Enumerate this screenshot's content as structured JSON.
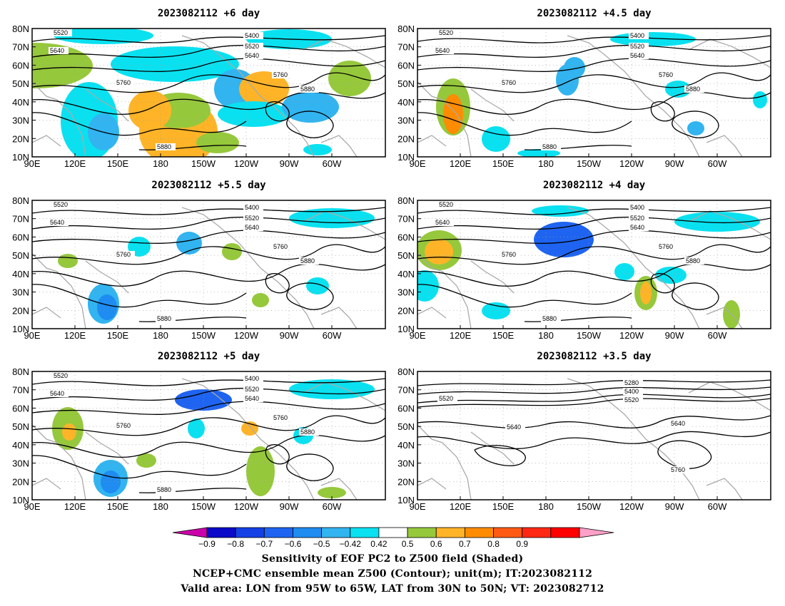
{
  "panels": [
    {
      "id": "p1",
      "title": "2023082112  +6 day",
      "contour_labels": [
        "5520",
        "5640",
        "5400",
        "5520",
        "5640",
        "5760",
        "5760",
        "5880",
        "5880"
      ],
      "coverage": "high"
    },
    {
      "id": "p2",
      "title": "2023082112  +4.5 day",
      "contour_labels": [
        "5520",
        "5640",
        "5400",
        "5520",
        "5640",
        "5760",
        "5760",
        "5880",
        "5880"
      ],
      "coverage": "medium"
    },
    {
      "id": "p3",
      "title": "2023082112  +5.5 day",
      "contour_labels": [
        "5520",
        "5640",
        "5400",
        "5520",
        "5640",
        "5760",
        "5760",
        "5880",
        "5880"
      ],
      "coverage": "low"
    },
    {
      "id": "p4",
      "title": "2023082112  +4 day",
      "contour_labels": [
        "5520",
        "5640",
        "5400",
        "5520",
        "5640",
        "5760",
        "5760",
        "5880",
        "5880"
      ],
      "coverage": "medium"
    },
    {
      "id": "p5",
      "title": "2023082112  +5 day",
      "contour_labels": [
        "5520",
        "5640",
        "5400",
        "5520",
        "5640",
        "5760",
        "5760",
        "5880",
        "5880"
      ],
      "coverage": "medium"
    },
    {
      "id": "p6",
      "title": "2023082112  +3.5 day",
      "contour_labels": [
        "5520",
        "5280",
        "5400",
        "5520",
        "5640",
        "5640",
        "5760"
      ],
      "coverage": "none"
    }
  ],
  "lat_ticks": [
    "80N",
    "70N",
    "60N",
    "50N",
    "40N",
    "30N",
    "20N",
    "10N"
  ],
  "lon_ticks": [
    "90E",
    "120E",
    "150E",
    "180",
    "150W",
    "120W",
    "90W",
    "60W"
  ],
  "colorbar": {
    "tick_labels": [
      "−0.9",
      "−0.8",
      "−0.7",
      "−0.6",
      "−0.5",
      "−0.42",
      "0.42",
      "0.5",
      "0.6",
      "0.7",
      "0.8",
      "0.9"
    ],
    "colors": [
      "#cc00aa",
      "#0a0ac8",
      "#1440e6",
      "#1e64f0",
      "#1e8cf0",
      "#32b4f0",
      "#0ae1f0",
      "#ffffff",
      "#96c83c",
      "#ffb428",
      "#ff8c00",
      "#ff5a14",
      "#ff2814",
      "#ff0000",
      "#ffa0c8"
    ]
  },
  "colors": {
    "land": "#aaaaaa",
    "contour": "#000000",
    "grid": "#999999"
  },
  "footer": {
    "line1": "Sensitivity of EOF PC2 to Z500 field (Shaded)",
    "line2": "NCEP+CMC ensemble mean Z500 (Contour); unit(m); IT:2023082112",
    "line3": "Valid area: LON from 95W to 65W, LAT from 30N to 50N; VT: 2023082712"
  }
}
